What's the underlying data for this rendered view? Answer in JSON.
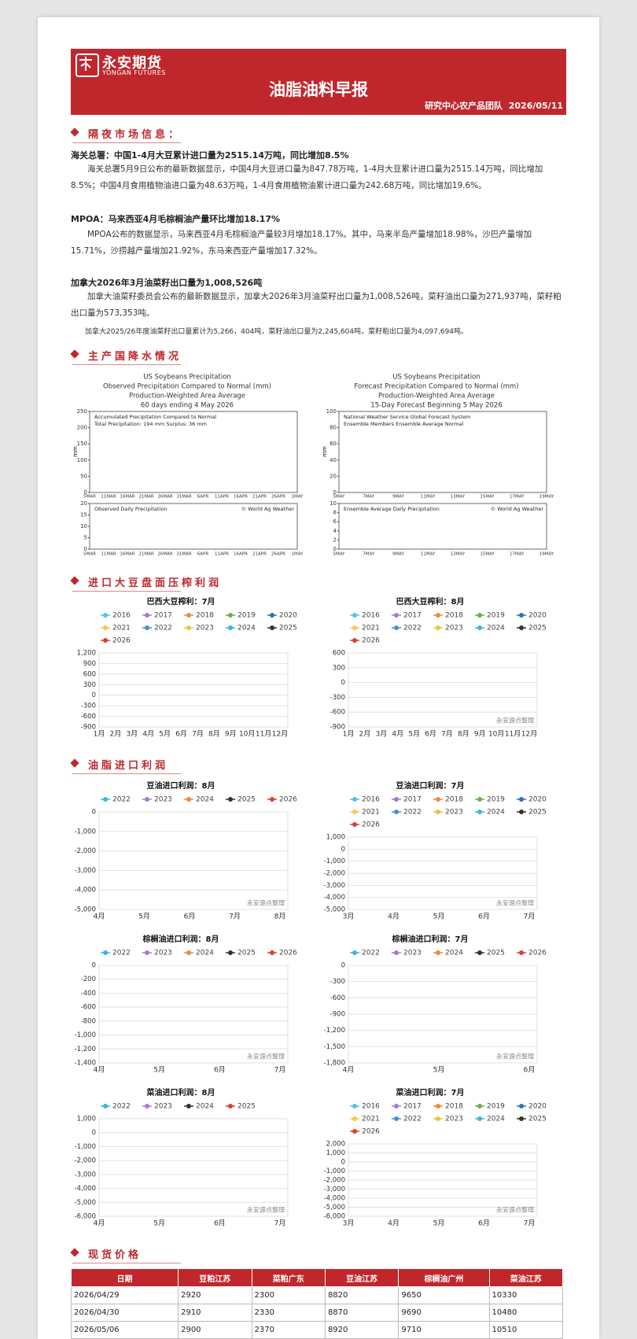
{
  "header": {
    "logo_cn": "永安期货",
    "logo_en": "YONGAN FUTURES",
    "title": "油脂油料早报",
    "team": "研究中心农产品团队",
    "date": "2026/05/11"
  },
  "overnight": {
    "heading": "隔夜市场信息：",
    "items": [
      {
        "title": "海关总署：中国1-4月大豆累计进口量为2515.14万吨，同比增加8.5%",
        "paragraphs": [
          "海关总署5月9日公布的最新数据显示，中国4月大豆进口量为847.78万吨，1-4月大豆累计进口量为2515.14万吨，同比增加8.5%；中国4月食用植物油进口量为48.63万吨，1-4月食用植物油累计进口量为242.68万吨，同比增加19.6%。"
        ]
      },
      {
        "title": "MPOA：马来西亚4月毛棕榈油产量环比增加18.17%",
        "paragraphs": [
          "MPOA公布的数据显示，马来西亚4月毛棕榈油产量较3月增加18.17%。其中，马来半岛产量增加18.98%，沙巴产量增加15.71%，沙捞越产量增加21.92%，东马来西亚产量增加17.32%。"
        ]
      },
      {
        "title": "加拿大2026年3月油菜籽出口量为1,008,526吨",
        "paragraphs": [
          "加拿大油菜籽委员会公布的最新数据显示，加拿大2026年3月油菜籽出口量为1,008,526吨，菜籽油出口量为271,937吨，菜籽粕出口量为573,353吨。",
          "加拿大2025/26年度油菜籽出口量累计为5,266，404吨，菜籽油出口量为2,245,604吨，菜籽粕出口量为4,097,694吨。"
        ]
      }
    ]
  },
  "precipitation": {
    "heading": "主产国降水情况",
    "charts": [
      {
        "titles": [
          "US Soybeans Precipitation",
          "Observed Precipitation Compared to Normal (mm)",
          "Production-Weighted Area Average",
          "60 days ending 4 May 2026"
        ],
        "y_label": "mm",
        "upper": {
          "caption": [
            "Accumulated Precipitation Compared to Normal",
            "Total Precipitation: 194 mm    Surplus: 36 mm"
          ],
          "yticks": [
            "250",
            "200",
            "150",
            "100",
            "50",
            "0"
          ]
        },
        "lower": {
          "caption": "Observed Daily Precipitation",
          "credit": "© World Ag Weather",
          "yticks": [
            "20",
            "15",
            "10",
            "5",
            "0"
          ]
        },
        "xticks": [
          "5MAR",
          "11MAR",
          "16MAR",
          "21MAR",
          "26MAR",
          "31MAR",
          "6APR",
          "11APR",
          "16APR",
          "21APR",
          "26APR",
          "1MAY"
        ]
      },
      {
        "titles": [
          "US Soybeans Precipitation",
          "Forecast Precipitation Compared to Normal (mm)",
          "Production-Weighted Area Average",
          "15-Day Forecast Beginning 5 May 2026"
        ],
        "y_label": "mm",
        "upper": {
          "caption": [
            "National Weather Service Global Forecast System",
            "Ensemble Members   Ensemble Average   Normal"
          ],
          "yticks": [
            "100",
            "80",
            "60",
            "40",
            "20",
            "0"
          ]
        },
        "lower": {
          "caption": "Ensemble Average Daily Precipitation",
          "credit": "© World Ag Weather",
          "yticks": [
            "10",
            "8",
            "6",
            "4",
            "2",
            "0"
          ]
        },
        "xticks": [
          "5MAY",
          "7MAY",
          "9MAY",
          "11MAY",
          "13MAY",
          "15MAY",
          "17MAY",
          "19MAY"
        ]
      }
    ]
  },
  "crush": {
    "heading": "进口大豆盘面压榨利润",
    "charts": [
      {
        "title": "巴西大豆榨利：7月",
        "legend": [
          {
            "name": "2016",
            "color": "#4fc3e8"
          },
          {
            "name": "2017",
            "color": "#a57ad6"
          },
          {
            "name": "2018",
            "color": "#f08a3c"
          },
          {
            "name": "2019",
            "color": "#6ab04c"
          },
          {
            "name": "2020",
            "color": "#2d6fc2"
          },
          {
            "name": "2021",
            "color": "#f2c94c"
          },
          {
            "name": "2022",
            "color": "#4a8fcf"
          },
          {
            "name": "2023",
            "color": "#e6c838"
          },
          {
            "name": "2024",
            "color": "#3ab6e0"
          },
          {
            "name": "2025",
            "color": "#333333"
          },
          {
            "name": "2026",
            "color": "#e03c31"
          }
        ],
        "yticks": [
          "1,200",
          "900",
          "600",
          "300",
          "0",
          "-300",
          "-600",
          "-900"
        ],
        "xticks": [
          "1月",
          "2月",
          "3月",
          "4月",
          "5月",
          "6月",
          "7月",
          "8月",
          "9月",
          "10月",
          "11月",
          "12月"
        ]
      },
      {
        "title": "巴西大豆榨利：8月",
        "legend": [
          {
            "name": "2016",
            "color": "#4fc3e8"
          },
          {
            "name": "2017",
            "color": "#a57ad6"
          },
          {
            "name": "2018",
            "color": "#f08a3c"
          },
          {
            "name": "2019",
            "color": "#6ab04c"
          },
          {
            "name": "2020",
            "color": "#2d6fc2"
          },
          {
            "name": "2021",
            "color": "#f2c94c"
          },
          {
            "name": "2022",
            "color": "#4a8fcf"
          },
          {
            "name": "2023",
            "color": "#e6c838"
          },
          {
            "name": "2024",
            "color": "#3ab6e0"
          },
          {
            "name": "2025",
            "color": "#333333"
          },
          {
            "name": "2026",
            "color": "#e03c31"
          }
        ],
        "yticks": [
          "600",
          "300",
          "0",
          "-300",
          "-600",
          "-900"
        ],
        "xticks": [
          "1月",
          "2月",
          "3月",
          "4月",
          "5月",
          "6月",
          "7月",
          "8月",
          "9月",
          "10月",
          "11月",
          "12月"
        ],
        "note": "永安源点整理"
      }
    ]
  },
  "imports": {
    "heading": "油脂进口利润",
    "charts": [
      {
        "title": "豆油进口利润：8月",
        "legend": [
          {
            "name": "2022",
            "color": "#3ab6e0"
          },
          {
            "name": "2023",
            "color": "#a57ad6"
          },
          {
            "name": "2024",
            "color": "#f08a3c"
          },
          {
            "name": "2025",
            "color": "#333333"
          },
          {
            "name": "2026",
            "color": "#e03c31"
          }
        ],
        "yticks": [
          "0",
          "-1,000",
          "-2,000",
          "-3,000",
          "-4,000",
          "-5,000"
        ],
        "xticks": [
          "4月",
          "5月",
          "6月",
          "7月",
          "8月"
        ],
        "note": "永安源点整理"
      },
      {
        "title": "豆油进口利润：7月",
        "legend": [
          {
            "name": "2016",
            "color": "#4fc3e8"
          },
          {
            "name": "2017",
            "color": "#a57ad6"
          },
          {
            "name": "2018",
            "color": "#f08a3c"
          },
          {
            "name": "2019",
            "color": "#6ab04c"
          },
          {
            "name": "2020",
            "color": "#2d6fc2"
          },
          {
            "name": "2021",
            "color": "#f2c94c"
          },
          {
            "name": "2022",
            "color": "#4a8fcf"
          },
          {
            "name": "2023",
            "color": "#e6c838"
          },
          {
            "name": "2024",
            "color": "#3ab6e0"
          },
          {
            "name": "2025",
            "color": "#333333"
          },
          {
            "name": "2026",
            "color": "#e03c31"
          }
        ],
        "yticks": [
          "1,000",
          "0",
          "-1,000",
          "-2,000",
          "-3,000",
          "-4,000",
          "-5,000"
        ],
        "xticks": [
          "3月",
          "4月",
          "5月",
          "6月",
          "7月"
        ],
        "note": "永安源点整理"
      },
      {
        "title": "棕榈油进口利润：8月",
        "legend": [
          {
            "name": "2022",
            "color": "#3ab6e0"
          },
          {
            "name": "2023",
            "color": "#a57ad6"
          },
          {
            "name": "2024",
            "color": "#f08a3c"
          },
          {
            "name": "2025",
            "color": "#333333"
          },
          {
            "name": "2026",
            "color": "#e03c31"
          }
        ],
        "yticks": [
          "0",
          "-200",
          "-400",
          "-600",
          "-800",
          "-1,000",
          "-1,200",
          "-1,400"
        ],
        "xticks": [
          "4月",
          "5月",
          "6月",
          "7月"
        ],
        "note": "永安源点整理"
      },
      {
        "title": "棕榈油进口利润：7月",
        "legend": [
          {
            "name": "2022",
            "color": "#3ab6e0"
          },
          {
            "name": "2023",
            "color": "#a57ad6"
          },
          {
            "name": "2024",
            "color": "#f08a3c"
          },
          {
            "name": "2025",
            "color": "#333333"
          },
          {
            "name": "2026",
            "color": "#e03c31"
          }
        ],
        "yticks": [
          "0",
          "-300",
          "-600",
          "-900",
          "-1,200",
          "-1,500",
          "-1,800"
        ],
        "xticks": [
          "4月",
          "5月",
          "6月"
        ],
        "note": "永安源点整理"
      },
      {
        "title": "菜油进口利润：8月",
        "legend": [
          {
            "name": "2022",
            "color": "#3ab6e0"
          },
          {
            "name": "2023",
            "color": "#a57ad6"
          },
          {
            "name": "2024",
            "color": "#333333"
          },
          {
            "name": "2025",
            "color": "#e03c31"
          }
        ],
        "yticks": [
          "1,000",
          "0",
          "-1,000",
          "-2,000",
          "-3,000",
          "-4,000",
          "-5,000",
          "-6,000"
        ],
        "xticks": [
          "4月",
          "5月",
          "6月",
          "7月"
        ],
        "note": "永安源点整理"
      },
      {
        "title": "菜油进口利润：7月",
        "legend": [
          {
            "name": "2016",
            "color": "#4fc3e8"
          },
          {
            "name": "2017",
            "color": "#a57ad6"
          },
          {
            "name": "2018",
            "color": "#f08a3c"
          },
          {
            "name": "2019",
            "color": "#6ab04c"
          },
          {
            "name": "2020",
            "color": "#2d6fc2"
          },
          {
            "name": "2021",
            "color": "#f2c94c"
          },
          {
            "name": "2022",
            "color": "#4a8fcf"
          },
          {
            "name": "2023",
            "color": "#e6c838"
          },
          {
            "name": "2024",
            "color": "#3ab6e0"
          },
          {
            "name": "2025",
            "color": "#333333"
          },
          {
            "name": "2026",
            "color": "#e03c31"
          }
        ],
        "yticks": [
          "2,000",
          "1,000",
          "0",
          "-1,000",
          "-2,000",
          "-3,000",
          "-4,000",
          "-5,000",
          "-6,000"
        ],
        "xticks": [
          "3月",
          "4月",
          "5月",
          "6月",
          "7月"
        ],
        "note": "永安源点整理"
      }
    ]
  },
  "spot": {
    "heading": "现货价格",
    "table": {
      "columns": [
        "日期",
        "豆粕江苏",
        "菜粕广东",
        "豆油江苏",
        "棕榈油广州",
        "菜油江苏"
      ],
      "rows": [
        [
          "2026/04/29",
          "2920",
          "2300",
          "8820",
          "9650",
          "10330"
        ],
        [
          "2026/04/30",
          "2910",
          "2330",
          "8870",
          "9690",
          "10480"
        ],
        [
          "2026/05/06",
          "2900",
          "2370",
          "8920",
          "9710",
          "10510"
        ]
      ]
    }
  }
}
